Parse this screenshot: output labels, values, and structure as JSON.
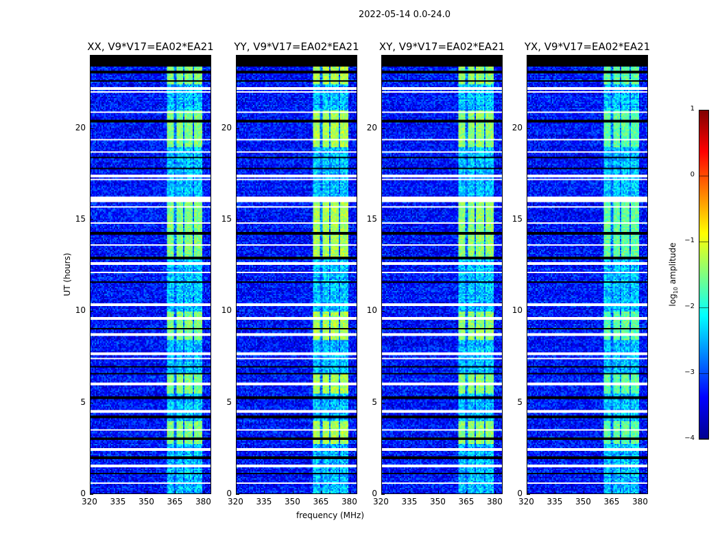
{
  "chart_data": {
    "type": "heatmap",
    "title": "2022-05-14 0.0-24.0",
    "xlabel": "frequency (MHz)",
    "ylabel": "UT (hours)",
    "xlim": [
      320,
      384
    ],
    "ylim": [
      0,
      24
    ],
    "xticks": [
      "320",
      "335",
      "350",
      "365",
      "380"
    ],
    "yticks": [
      "0",
      "5",
      "10",
      "15",
      "20"
    ],
    "panels": [
      {
        "title": "XX, V9*V17=EA02*EA21",
        "gain": 1.0
      },
      {
        "title": "YY, V9*V17=EA02*EA21",
        "gain": 1.15
      },
      {
        "title": "XY, V9*V17=EA02*EA21",
        "gain": 1.05
      },
      {
        "title": "YX, V9*V17=EA02*EA21",
        "gain": 0.9
      }
    ],
    "colorbar": {
      "label_prefix": "log",
      "label_sub": "10",
      "label_suffix": " amplitude",
      "range": [
        -4,
        1
      ],
      "ticks": [
        "1",
        "0",
        "−1",
        "−2",
        "−3",
        "−4"
      ],
      "colormap": "jet"
    },
    "background_level": -3.3,
    "rfi_bands_mhz": [
      [
        360.5,
        364.5
      ],
      [
        365.5,
        369.5
      ],
      [
        370.5,
        374.5
      ],
      [
        375.5,
        379.5
      ]
    ],
    "rfi_active_hours": [
      [
        2.7,
        4.0
      ],
      [
        5.5,
        6.6
      ],
      [
        8.4,
        10.0
      ],
      [
        13.0,
        16.0
      ],
      [
        19.0,
        21.0
      ],
      [
        22.4,
        23.4
      ]
    ],
    "rfi_level": -1.5,
    "flagged_white_hours": [
      22.2,
      22.0,
      20.9,
      19.4,
      18.7,
      17.4,
      17.2,
      16.2,
      16.05,
      15.7,
      14.8,
      13.6,
      12.6,
      12.1,
      10.35,
      9.6,
      8.7,
      7.65,
      7.4,
      6.0,
      4.5,
      3.5,
      2.4,
      1.5,
      0.55
    ],
    "flagged_black_hours": [
      20.4,
      18.4,
      17.8,
      14.25,
      12.9,
      11.6,
      9.05,
      6.95,
      6.55,
      5.25,
      4.2,
      3.0,
      1.95,
      1.1,
      22.6,
      23.1
    ],
    "no_data_hours": [
      23.4,
      24
    ]
  }
}
